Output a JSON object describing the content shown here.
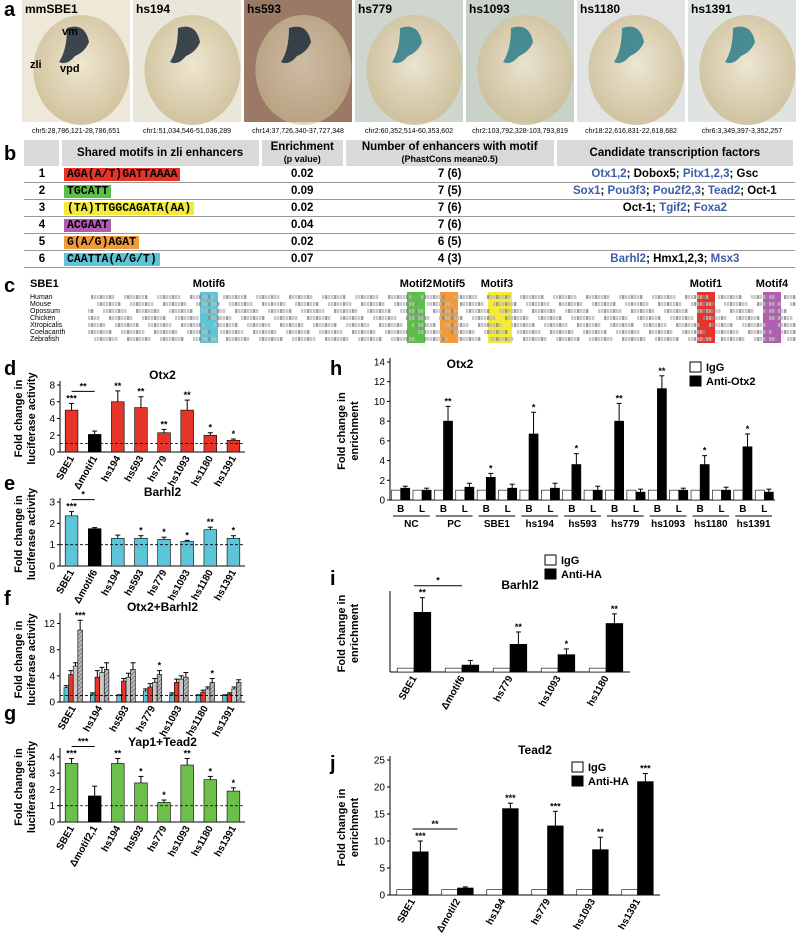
{
  "panel_a": {
    "letter": "a",
    "images": [
      {
        "label": "mmSBE1",
        "coords": "chr5:28,786,121-28,786,651"
      },
      {
        "label": "hs194",
        "coords": "chr1:51,034,546-51,036,289"
      },
      {
        "label": "hs593",
        "coords": "chr14:37,726,340-37,727,348"
      },
      {
        "label": "hs779",
        "coords": "chr2:60,352,514-60,353,602"
      },
      {
        "label": "hs1093",
        "coords": "chr2:103,792,328-103,793,819"
      },
      {
        "label": "hs1180",
        "coords": "chr18:22,616,831-22,618,682"
      },
      {
        "label": "hs1391",
        "coords": "chr6:3,349,397-3,352,257"
      }
    ],
    "annotations": [
      "vm",
      "zli",
      "vpd"
    ]
  },
  "table": {
    "letter": "b",
    "separator": "; ",
    "header": [
      [
        "Shared motifs in zli enhancers"
      ],
      [
        "Enrichment",
        "(p value)"
      ],
      [
        "Number of enhancers with motif",
        "(PhastCons mean≥0.5)"
      ],
      [
        "Candidate transcription factors"
      ]
    ],
    "rows": [
      {
        "number": "1",
        "motif": "AGA(A/T)GATTAAAA",
        "color": "#e5342a",
        "p": "0.02",
        "count": "7 (6)",
        "factors": [
          {
            "text": "Otx1,2",
            "color": "#3b5ca8"
          },
          {
            "text": "Dobox5",
            "color": "#000000"
          },
          {
            "text": "Pitx1,2,3",
            "color": "#3b5ca8"
          },
          {
            "text": "Gsc",
            "color": "#000000"
          }
        ]
      },
      {
        "number": "2",
        "motif": "TGCATT",
        "color": "#5cbf4a",
        "p": "0.09",
        "count": "7 (5)",
        "factors": [
          {
            "text": "Sox1",
            "color": "#3b5ca8"
          },
          {
            "text": "Pou3f3",
            "color": "#3b5ca8"
          },
          {
            "text": "Pou2f2,3",
            "color": "#3b5ca8"
          },
          {
            "text": "Tead2",
            "color": "#3b5ca8"
          },
          {
            "text": "Oct-1",
            "color": "#000000"
          }
        ]
      },
      {
        "number": "3",
        "motif": "(TA)TTGGCAGATA(AA)",
        "color": "#f4ea3a",
        "p": "0.02",
        "count": "7 (6)",
        "factors": [
          {
            "text": "Oct-1",
            "color": "#000000"
          },
          {
            "text": "Tgif2",
            "color": "#3b5ca8"
          },
          {
            "text": "Foxa2",
            "color": "#3b5ca8"
          }
        ]
      },
      {
        "number": "4",
        "motif": "ACGAAT",
        "color": "#b35cb3",
        "p": "0.04",
        "count": "7 (6)",
        "factors": []
      },
      {
        "number": "5",
        "motif": "G(A/G)AGAT",
        "color": "#f29a3a",
        "p": "0.02",
        "count": "6 (5)",
        "factors": []
      },
      {
        "number": "6",
        "motif": "CAATTA(A/G/T)",
        "color": "#5cc6d8",
        "p": "0.07",
        "count": "4 (3)",
        "factors": [
          {
            "text": "Barhl2",
            "color": "#3b5ca8"
          },
          {
            "text": "Hmx1,2,3",
            "color": "#000000"
          },
          {
            "text": "Msx3",
            "color": "#3b5ca8"
          }
        ]
      }
    ]
  },
  "alignment": {
    "letter": "c",
    "title": "SBE1",
    "motif_labels": [
      "Motif6",
      "Motif2",
      "Motif5",
      "Motif3",
      "Motif1",
      "Motif4"
    ],
    "species": [
      "Human",
      "Mouse",
      "Opossum",
      "Chicken",
      "Xtropicalis",
      "Coelacanth",
      "Zebrafish"
    ]
  },
  "chart_data": [
    {
      "panel": "d",
      "type": "bar",
      "title": "Otx2",
      "ylabel": [
        "Fold change in",
        "luciferase activity"
      ],
      "categories": [
        "SBE1",
        "Δmotif1",
        "hs194",
        "hs593",
        "hs779",
        "hs1093",
        "hs1180",
        "hs1391"
      ],
      "values": [
        5,
        2.1,
        6,
        5.3,
        2.3,
        5,
        2,
        1.4
      ],
      "errors": [
        0.8,
        0.4,
        1.3,
        1.3,
        0.4,
        1.2,
        0.3,
        0.15
      ],
      "colors": [
        "#e5342a",
        "#000000",
        "#e5342a",
        "#e5342a",
        "#e5342a",
        "#e5342a",
        "#e5342a",
        "#e5342a"
      ],
      "significance": [
        "***",
        null,
        "**",
        "**",
        "**",
        "**",
        "*",
        "*"
      ],
      "comparison": "**",
      "reference_line": 1,
      "ylim": [
        0,
        8
      ],
      "yticks": [
        0,
        2,
        4,
        6,
        8
      ]
    },
    {
      "panel": "e",
      "type": "bar",
      "title": "Barhl2",
      "ylabel": [
        "Fold change in",
        "luciferase activity"
      ],
      "categories": [
        "SBE1",
        "Δmotif6",
        "hs194",
        "hs593",
        "hs779",
        "hs1093",
        "hs1180",
        "hs1391"
      ],
      "values": [
        2.35,
        1.75,
        1.3,
        1.3,
        1.25,
        1.15,
        1.7,
        1.3
      ],
      "errors": [
        0.2,
        0.05,
        0.15,
        0.12,
        0.1,
        0.05,
        0.12,
        0.12
      ],
      "colors": [
        "#5cc6d8",
        "#000000",
        "#5cc6d8",
        "#5cc6d8",
        "#5cc6d8",
        "#5cc6d8",
        "#5cc6d8",
        "#5cc6d8"
      ],
      "significance": [
        "***",
        null,
        null,
        "*",
        "*",
        "*",
        "**",
        "*"
      ],
      "comparison": "*",
      "reference_line": 1,
      "ylim": [
        0,
        3
      ],
      "yticks": [
        0,
        1,
        2,
        3
      ]
    },
    {
      "panel": "f",
      "type": "grouped_bar",
      "title": "Otx2+Barhl2",
      "ylabel": [
        "Fold change in",
        "luciferase activity"
      ],
      "categories": [
        "SBE1",
        "hs194",
        "hs593",
        "hs779",
        "hs1093",
        "hs1180",
        "hs1391"
      ],
      "series": [
        {
          "color": "#5cc6d8",
          "values": [
            2.2,
            1.2,
            1,
            1.7,
            1.2,
            1,
            1
          ],
          "errors": [
            0.3,
            0.2,
            0.1,
            0.3,
            0.2,
            0.1,
            0.1
          ]
        },
        {
          "color": "#e5342a",
          "values": [
            4.2,
            3.8,
            3.2,
            2.3,
            3,
            1.5,
            1.2
          ],
          "errors": [
            0.6,
            1,
            0.4,
            0.5,
            0.5,
            0.3,
            0.2
          ]
        },
        {
          "color": "#c8c8c8",
          "values": [
            5.5,
            4.5,
            3.8,
            3,
            3.5,
            2,
            2
          ],
          "errors": [
            0.5,
            0.8,
            0.6,
            0.6,
            0.5,
            0.3,
            0.3
          ]
        },
        {
          "color": "#8a8a8a",
          "hatch": true,
          "values": [
            11,
            5,
            5,
            4.2,
            3.8,
            3,
            3
          ],
          "errors": [
            1.5,
            1,
            1,
            0.6,
            0.7,
            0.6,
            0.4
          ],
          "significance": [
            "***",
            null,
            null,
            "*",
            null,
            "*",
            null
          ]
        }
      ],
      "reference_line": 1,
      "ylim": [
        0,
        13
      ],
      "yticks": [
        0,
        4,
        8,
        12
      ]
    },
    {
      "panel": "g",
      "type": "bar",
      "title": "Yap1+Tead2",
      "ylabel": [
        "Fold change in",
        "luciferase activity"
      ],
      "categories": [
        "SBE1",
        "Δmotif2,1",
        "hs194",
        "hs593",
        "hs779",
        "hs1093",
        "hs1180",
        "hs1391"
      ],
      "values": [
        3.6,
        1.6,
        3.6,
        2.4,
        1.2,
        3.5,
        2.6,
        1.9
      ],
      "errors": [
        0.3,
        0.6,
        0.3,
        0.4,
        0.15,
        0.4,
        0.2,
        0.2
      ],
      "colors": [
        "#6cbf4a",
        "#000000",
        "#6cbf4a",
        "#6cbf4a",
        "#6cbf4a",
        "#6cbf4a",
        "#6cbf4a",
        "#6cbf4a"
      ],
      "significance": [
        "***",
        null,
        "**",
        "*",
        "*",
        "**",
        "*",
        "*"
      ],
      "comparison": "***",
      "reference_line": 1,
      "ylim": [
        0,
        4.3
      ],
      "yticks": [
        0,
        1,
        2,
        3,
        4
      ]
    },
    {
      "panel": "h",
      "type": "grouped_bar",
      "title": "Otx2",
      "ylabel": [
        "Fold change in",
        "enrichment"
      ],
      "categories": [
        "B",
        "L",
        "B",
        "L",
        "B",
        "L",
        "B",
        "L",
        "B",
        "L",
        "B",
        "L",
        "B",
        "L",
        "B",
        "L",
        "B",
        "L"
      ],
      "groups": [
        "NC",
        "PC",
        "SBE1",
        "hs194",
        "hs593",
        "hs779",
        "hs1093",
        "hs1180",
        "hs1391"
      ],
      "series": [
        {
          "name": "IgG",
          "color": "#ffffff",
          "values": [
            1,
            1,
            1,
            1,
            1,
            1,
            1,
            1,
            1,
            1,
            1,
            1,
            1,
            1,
            1,
            1,
            1,
            1
          ]
        },
        {
          "name": "Anti-Otx2",
          "color": "#000000",
          "values": [
            1.2,
            1.0,
            8,
            1.3,
            2.3,
            1.2,
            6.7,
            1.2,
            3.6,
            1.0,
            8,
            0.8,
            11.3,
            1.0,
            3.6,
            1.0,
            5.4,
            0.8
          ],
          "errors": [
            0.2,
            0.2,
            1.5,
            0.4,
            0.4,
            0.4,
            2.2,
            0.5,
            1.1,
            0.4,
            1.8,
            0.3,
            1.3,
            0.2,
            0.9,
            0.3,
            1.3,
            0.3
          ],
          "significance": [
            null,
            null,
            "**",
            null,
            "*",
            null,
            "*",
            null,
            "*",
            null,
            "**",
            null,
            "**",
            null,
            "*",
            null,
            "*",
            null
          ]
        }
      ],
      "legend": "top-right",
      "ylim": [
        0,
        14
      ],
      "yticks": [
        0,
        2,
        4,
        6,
        8,
        10,
        12,
        14
      ]
    },
    {
      "panel": "i",
      "type": "grouped_bar",
      "title": "Barhl2",
      "ylabel": [
        "Fold change in",
        "enrichment"
      ],
      "categories": [
        "SBE1",
        "Δmotif6",
        "hs779",
        "hs1093",
        "hs1180"
      ],
      "series": [
        {
          "name": "IgG",
          "color": "#ffffff",
          "values": [
            1,
            1,
            1,
            1,
            1
          ]
        },
        {
          "name": "Anti-HA",
          "color": "#000000",
          "values": [
            15.5,
            1.8,
            7.2,
            4.5,
            12.6
          ],
          "errors": [
            3.8,
            1.2,
            3.2,
            1.5,
            2.5
          ],
          "significance": [
            "**",
            null,
            "**",
            "*",
            "**"
          ]
        }
      ],
      "comparison": "*",
      "legend": "top-right",
      "ylim": [
        0,
        20
      ]
    },
    {
      "panel": "j",
      "type": "grouped_bar",
      "title": "Tead2",
      "ylabel": [
        "Fold change in",
        "enrichment"
      ],
      "categories": [
        "SBE1",
        "Δmotif2",
        "hs194",
        "hs779",
        "hs1093",
        "hs1391"
      ],
      "series": [
        {
          "name": "IgG",
          "color": "#ffffff",
          "values": [
            1,
            1,
            1,
            1,
            1,
            1
          ]
        },
        {
          "name": "Anti-HA",
          "color": "#000000",
          "values": [
            8,
            1.3,
            16,
            12.8,
            8.4,
            21
          ],
          "errors": [
            2,
            0.2,
            1,
            2.7,
            2.3,
            1.5
          ],
          "significance": [
            "***",
            null,
            "***",
            "***",
            "**",
            "***"
          ]
        }
      ],
      "comparison": "**",
      "legend": "top-right",
      "ylim": [
        0,
        25
      ],
      "yticks": [
        0,
        5,
        10,
        15,
        20,
        25
      ]
    }
  ]
}
